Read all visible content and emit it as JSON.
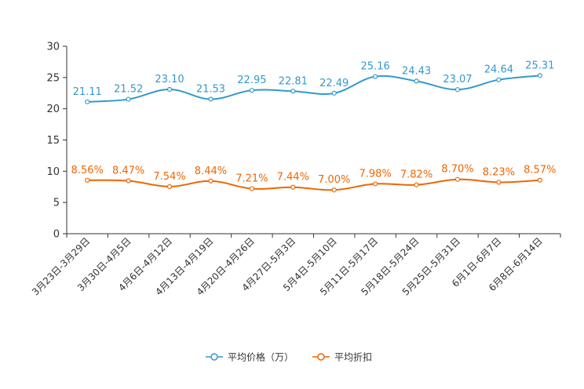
{
  "chart_data": {
    "type": "line",
    "title": "",
    "xlabel": "",
    "ylabel": "",
    "ylim": [
      0,
      30
    ],
    "yticks": [
      0,
      5,
      10,
      15,
      20,
      25,
      30
    ],
    "categories": [
      "3月23日-3月29日",
      "3月30日-4月5日",
      "4月6日-4月12日",
      "4月13日-4月19日",
      "4月20日-4月26日",
      "4月27日-5月3日",
      "5月4日-5月10日",
      "5月11日-5月17日",
      "5月18日-5月24日",
      "5月25日-5月31日",
      "6月1日-6月7日",
      "6月8日-6月14日"
    ],
    "series": [
      {
        "name": "平均价格（万）",
        "color": "#3399cc",
        "values": [
          21.11,
          21.52,
          23.1,
          21.53,
          22.95,
          22.81,
          22.49,
          25.16,
          24.43,
          23.07,
          24.64,
          25.31
        ],
        "labels": [
          "21.11",
          "21.52",
          "23.10",
          "21.53",
          "22.95",
          "22.81",
          "22.49",
          "25.16",
          "24.43",
          "23.07",
          "24.64",
          "25.31"
        ]
      },
      {
        "name": "平均折扣",
        "color": "#ee6600",
        "values": [
          8.56,
          8.47,
          7.54,
          8.44,
          7.21,
          7.44,
          7.0,
          7.98,
          7.82,
          8.7,
          8.23,
          8.57
        ],
        "labels": [
          "8.56%",
          "8.47%",
          "7.54%",
          "8.44%",
          "7.21%",
          "7.44%",
          "7.00%",
          "7.98%",
          "7.82%",
          "8.70%",
          "8.23%",
          "8.57%"
        ]
      }
    ],
    "legend": "bottom-center"
  }
}
